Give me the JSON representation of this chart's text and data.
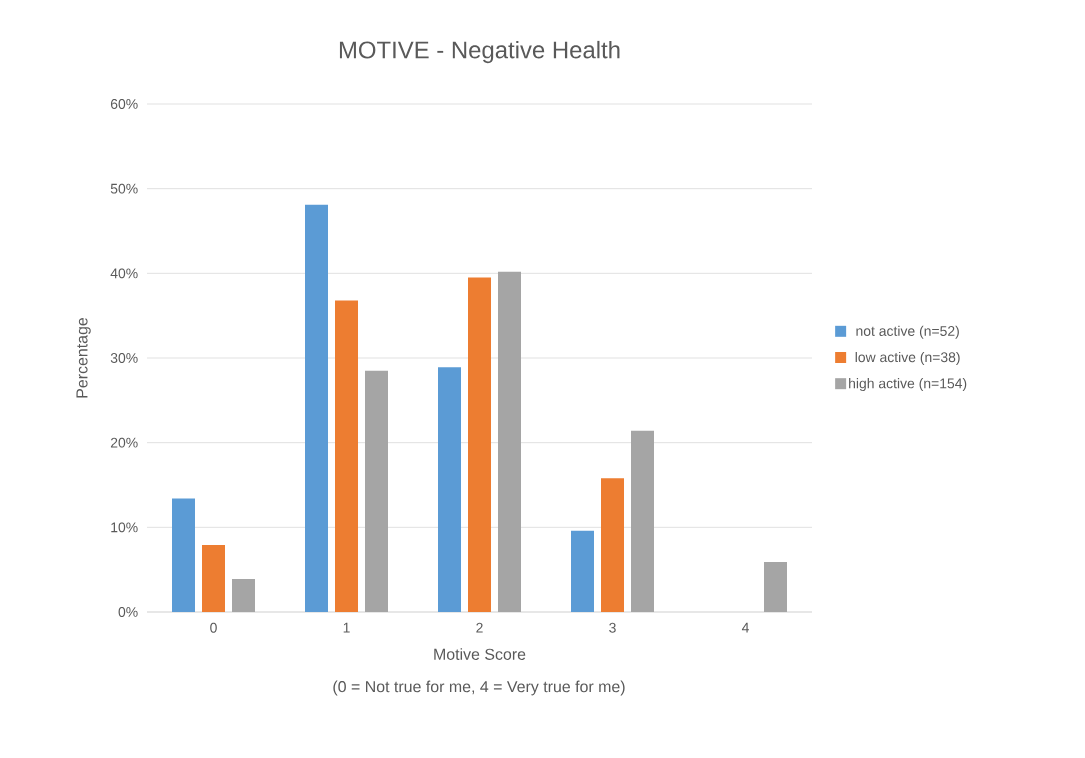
{
  "chart_data": {
    "type": "bar",
    "title": "MOTIVE - Negative Health",
    "xlabel": "Motive Score",
    "ylabel": "Percentage",
    "annotations": [
      "(0 = Not true for me, 4 = Very true for me)"
    ],
    "categories": [
      "0",
      "1",
      "2",
      "3",
      "4"
    ],
    "series": [
      {
        "name": "not active (n=52)",
        "color": "#5b9bd5",
        "values": [
          13.4,
          48.1,
          28.9,
          9.6,
          0
        ]
      },
      {
        "name": "low active (n=38)",
        "color": "#ed7d31",
        "values": [
          7.9,
          36.8,
          39.5,
          15.8,
          0
        ]
      },
      {
        "name": "high active (n=154)",
        "color": "#a5a5a5",
        "values": [
          3.9,
          28.5,
          40.2,
          21.4,
          5.9
        ]
      }
    ],
    "ylim": [
      0,
      60
    ],
    "yticks": [
      {
        "value": 0,
        "label": "0%"
      },
      {
        "value": 10,
        "label": "10%"
      },
      {
        "value": 20,
        "label": "20%"
      },
      {
        "value": 30,
        "label": "30%"
      },
      {
        "value": 40,
        "label": "40%"
      },
      {
        "value": 50,
        "label": "50%"
      },
      {
        "value": 60,
        "label": "60%"
      }
    ],
    "grid": "y",
    "legend": "right"
  }
}
